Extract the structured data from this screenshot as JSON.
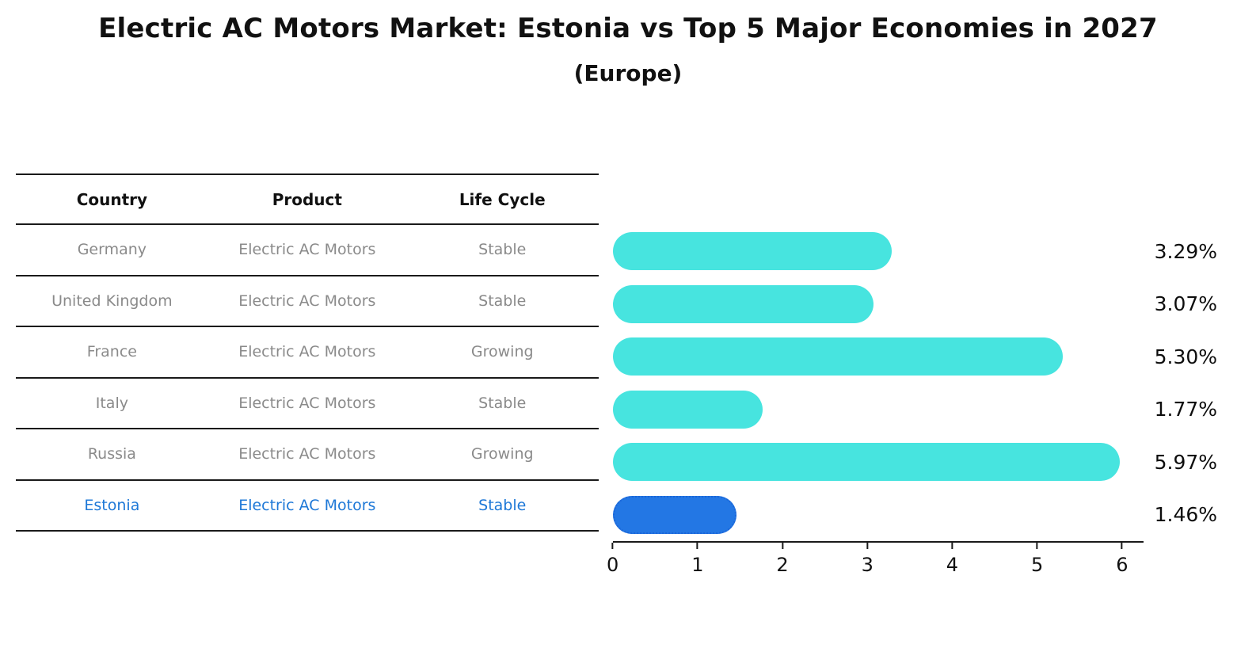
{
  "title": "Electric AC Motors Market: Estonia vs Top 5 Major Economies in 2027",
  "subtitle": "(Europe)",
  "table": {
    "headers": [
      "Country",
      "Product",
      "Life Cycle"
    ],
    "rows": [
      {
        "country": "Germany",
        "product": "Electric AC Motors",
        "life_cycle": "Stable",
        "highlight": false
      },
      {
        "country": "United Kingdom",
        "product": "Electric AC Motors",
        "life_cycle": "Stable",
        "highlight": false
      },
      {
        "country": "France",
        "product": "Electric AC Motors",
        "life_cycle": "Growing",
        "highlight": false
      },
      {
        "country": "Italy",
        "product": "Electric AC Motors",
        "life_cycle": "Stable",
        "highlight": false
      },
      {
        "country": "Russia",
        "product": "Electric AC Motors",
        "life_cycle": "Growing",
        "highlight": false
      },
      {
        "country": "Estonia",
        "product": "Electric AC Motors",
        "life_cycle": "Stable",
        "highlight": true
      }
    ]
  },
  "chart_data": {
    "type": "bar",
    "orientation": "horizontal",
    "title": "Electric AC Motors Market: Estonia vs Top 5 Major Economies in 2027 (Europe)",
    "categories": [
      "Germany",
      "United Kingdom",
      "France",
      "Italy",
      "Russia",
      "Estonia"
    ],
    "values": [
      3.29,
      3.07,
      5.3,
      1.77,
      5.97,
      1.46
    ],
    "value_labels": [
      "3.29%",
      "3.07%",
      "5.30%",
      "1.77%",
      "5.97%",
      "1.46%"
    ],
    "xlabel": "",
    "ylabel": "",
    "xlim": [
      0,
      6.25
    ],
    "xticks": [
      0,
      1,
      2,
      3,
      4,
      5,
      6
    ],
    "grid": false,
    "legend": false,
    "bar_color": "#47e4df",
    "highlight_index": 5,
    "highlight_bar_color": "#2377e4",
    "highlight_border_color": "#1b66d9"
  },
  "colors": {
    "row_text": "#8a8a8a",
    "highlight_text": "#1e78d7",
    "title_text": "#111111"
  }
}
